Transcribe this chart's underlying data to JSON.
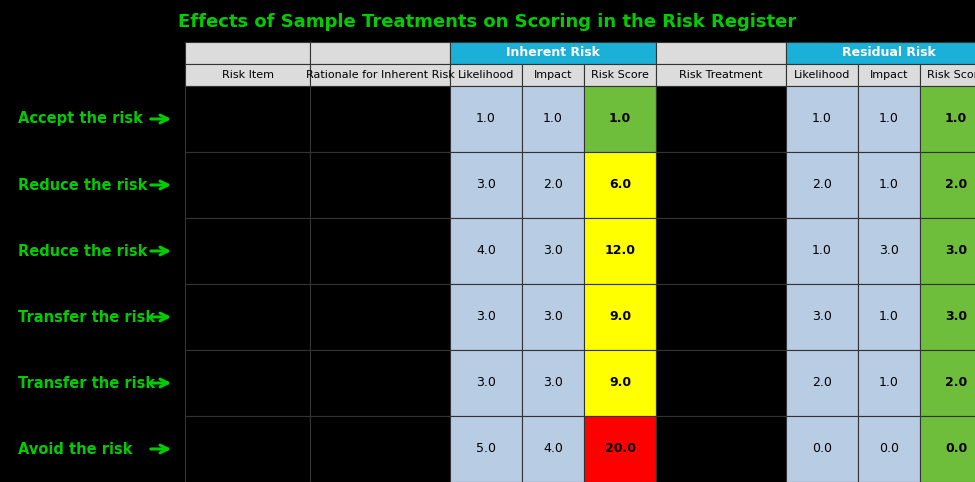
{
  "title": "Effects of Sample Treatments on Scoring in the Risk Register",
  "title_color": "#00cc00",
  "background_color": "#000000",
  "col_headers_row2": [
    "Risk Item",
    "Rationale for Inherent Risk",
    "Likelihood",
    "Impact",
    "Risk Score",
    "Risk Treatment",
    "Likelihood",
    "Impact",
    "Risk Score"
  ],
  "inherent_risk_header_color": "#1ab0d8",
  "residual_risk_header_color": "#1ab0d8",
  "likelihood_impact_bg": "#b8cce4",
  "green_bg": "#6ebe3b",
  "yellow_bg": "#ffff00",
  "red_bg": "#ff0000",
  "rows": [
    {
      "label": "Accept the risk",
      "inherent_likelihood": "1.0",
      "inherent_impact": "1.0",
      "inherent_score": "1.0",
      "inherent_score_color": "#6ebe3b",
      "residual_likelihood": "1.0",
      "residual_impact": "1.0",
      "residual_score": "1.0",
      "residual_score_color": "#6ebe3b"
    },
    {
      "label": "Reduce the risk",
      "inherent_likelihood": "3.0",
      "inherent_impact": "2.0",
      "inherent_score": "6.0",
      "inherent_score_color": "#ffff00",
      "residual_likelihood": "2.0",
      "residual_impact": "1.0",
      "residual_score": "2.0",
      "residual_score_color": "#6ebe3b"
    },
    {
      "label": "Reduce the risk",
      "inherent_likelihood": "4.0",
      "inherent_impact": "3.0",
      "inherent_score": "12.0",
      "inherent_score_color": "#ffff00",
      "residual_likelihood": "1.0",
      "residual_impact": "3.0",
      "residual_score": "3.0",
      "residual_score_color": "#6ebe3b"
    },
    {
      "label": "Transfer the risk",
      "inherent_likelihood": "3.0",
      "inherent_impact": "3.0",
      "inherent_score": "9.0",
      "inherent_score_color": "#ffff00",
      "residual_likelihood": "3.0",
      "residual_impact": "1.0",
      "residual_score": "3.0",
      "residual_score_color": "#6ebe3b"
    },
    {
      "label": "Transfer the risk",
      "inherent_likelihood": "3.0",
      "inherent_impact": "3.0",
      "inherent_score": "9.0",
      "inherent_score_color": "#ffff00",
      "residual_likelihood": "2.0",
      "residual_impact": "1.0",
      "residual_score": "2.0",
      "residual_score_color": "#6ebe3b"
    },
    {
      "label": "Avoid the risk",
      "inherent_likelihood": "5.0",
      "inherent_impact": "4.0",
      "inherent_score": "20.0",
      "inherent_score_color": "#ff0000",
      "residual_likelihood": "0.0",
      "residual_impact": "0.0",
      "residual_score": "0.0",
      "residual_score_color": "#6ebe3b"
    }
  ],
  "label_color": "#00cc00",
  "label_fontsize": 10.5,
  "cell_fontsize": 9,
  "header1_fontsize": 9,
  "header2_fontsize": 8,
  "title_fontsize": 13
}
